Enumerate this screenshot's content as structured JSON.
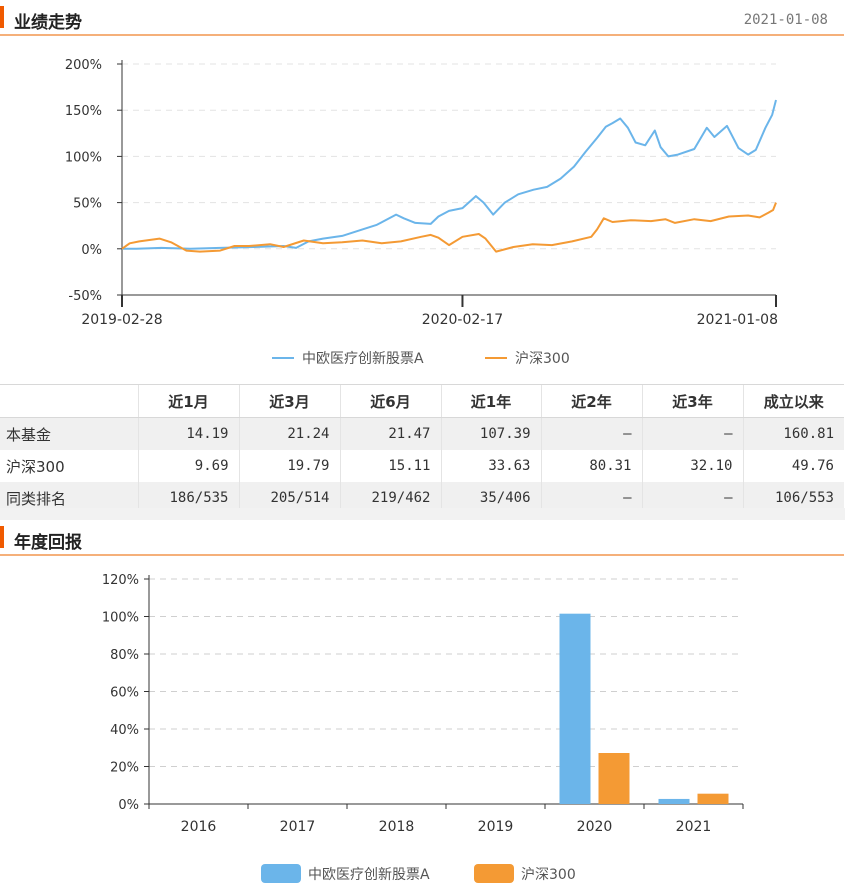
{
  "performance": {
    "title": "业绩走势",
    "date": "2021-01-08"
  },
  "chart_data": [
    {
      "type": "line",
      "ylim": [
        -50,
        200
      ],
      "yticks": [
        "200%",
        "150%",
        "100%",
        "50%",
        "0%",
        "-50%"
      ],
      "ytick_values": [
        200,
        150,
        100,
        50,
        0,
        -50
      ],
      "xticks": [
        "2019-02-28",
        "2020-02-17",
        "2021-01-08"
      ],
      "x_range": [
        "2019-02-28",
        "2021-01-08"
      ],
      "grid": true,
      "legend": "bottom",
      "series": [
        {
          "name": "中欧医疗创新股票A",
          "color": "#6bb5ea",
          "points": [
            [
              "2019-02-28",
              0
            ],
            [
              "2019-03-15",
              0
            ],
            [
              "2019-04-10",
              1
            ],
            [
              "2019-05-10",
              0
            ],
            [
              "2019-06-10",
              1
            ],
            [
              "2019-07-15",
              2
            ],
            [
              "2019-08-15",
              3
            ],
            [
              "2019-08-28",
              1
            ],
            [
              "2019-09-10",
              8
            ],
            [
              "2019-09-25",
              11
            ],
            [
              "2019-10-15",
              14
            ],
            [
              "2019-11-05",
              21
            ],
            [
              "2019-11-20",
              26
            ],
            [
              "2019-12-10",
              37
            ],
            [
              "2019-12-18",
              33
            ],
            [
              "2019-12-30",
              28
            ],
            [
              "2020-01-15",
              27
            ],
            [
              "2020-01-23",
              35
            ],
            [
              "2020-02-03",
              41
            ],
            [
              "2020-02-17",
              44
            ],
            [
              "2020-03-02",
              57
            ],
            [
              "2020-03-10",
              50
            ],
            [
              "2020-03-20",
              37
            ],
            [
              "2020-04-01",
              50
            ],
            [
              "2020-04-15",
              59
            ],
            [
              "2020-05-01",
              64
            ],
            [
              "2020-05-15",
              67
            ],
            [
              "2020-05-29",
              76
            ],
            [
              "2020-06-12",
              89
            ],
            [
              "2020-06-24",
              105
            ],
            [
              "2020-07-06",
              120
            ],
            [
              "2020-07-15",
              132
            ],
            [
              "2020-07-22",
              136
            ],
            [
              "2020-07-30",
              141
            ],
            [
              "2020-08-07",
              131
            ],
            [
              "2020-08-15",
              115
            ],
            [
              "2020-08-25",
              112
            ],
            [
              "2020-09-04",
              128
            ],
            [
              "2020-09-10",
              110
            ],
            [
              "2020-09-18",
              100
            ],
            [
              "2020-09-28",
              102
            ],
            [
              "2020-10-15",
              108
            ],
            [
              "2020-10-28",
              131
            ],
            [
              "2020-11-05",
              121
            ],
            [
              "2020-11-18",
              133
            ],
            [
              "2020-11-30",
              109
            ],
            [
              "2020-12-10",
              102
            ],
            [
              "2020-12-18",
              107
            ],
            [
              "2020-12-28",
              131
            ],
            [
              "2021-01-04",
              145
            ],
            [
              "2021-01-08",
              161
            ]
          ]
        },
        {
          "name": "沪深300",
          "color": "#f49a34",
          "points": [
            [
              "2019-02-28",
              0
            ],
            [
              "2019-03-08",
              6
            ],
            [
              "2019-03-18",
              8
            ],
            [
              "2019-04-08",
              11
            ],
            [
              "2019-04-20",
              7
            ],
            [
              "2019-05-06",
              -2
            ],
            [
              "2019-05-20",
              -3
            ],
            [
              "2019-06-10",
              -2
            ],
            [
              "2019-06-25",
              3
            ],
            [
              "2019-07-10",
              3
            ],
            [
              "2019-08-01",
              5
            ],
            [
              "2019-08-15",
              2
            ],
            [
              "2019-09-05",
              9
            ],
            [
              "2019-09-25",
              6
            ],
            [
              "2019-10-15",
              7
            ],
            [
              "2019-11-05",
              9
            ],
            [
              "2019-11-25",
              6
            ],
            [
              "2019-12-15",
              8
            ],
            [
              "2020-01-05",
              13
            ],
            [
              "2020-01-15",
              15
            ],
            [
              "2020-01-23",
              12
            ],
            [
              "2020-02-03",
              4
            ],
            [
              "2020-02-17",
              13
            ],
            [
              "2020-03-05",
              16
            ],
            [
              "2020-03-12",
              11
            ],
            [
              "2020-03-23",
              -3
            ],
            [
              "2020-04-10",
              2
            ],
            [
              "2020-04-30",
              5
            ],
            [
              "2020-05-20",
              4
            ],
            [
              "2020-06-10",
              8
            ],
            [
              "2020-06-30",
              13
            ],
            [
              "2020-07-06",
              21
            ],
            [
              "2020-07-13",
              33
            ],
            [
              "2020-07-22",
              29
            ],
            [
              "2020-08-10",
              31
            ],
            [
              "2020-08-31",
              30
            ],
            [
              "2020-09-15",
              32
            ],
            [
              "2020-09-25",
              28
            ],
            [
              "2020-10-15",
              32
            ],
            [
              "2020-11-01",
              30
            ],
            [
              "2020-11-20",
              35
            ],
            [
              "2020-12-10",
              36
            ],
            [
              "2020-12-22",
              34
            ],
            [
              "2020-12-31",
              39
            ],
            [
              "2021-01-05",
              42
            ],
            [
              "2021-01-08",
              50
            ]
          ]
        }
      ]
    },
    {
      "type": "bar",
      "title": "年度回报",
      "categories": [
        "2016",
        "2017",
        "2018",
        "2019",
        "2020",
        "2021"
      ],
      "ylim": [
        0,
        120
      ],
      "yticks": [
        "120%",
        "100%",
        "80%",
        "60%",
        "40%",
        "20%",
        "0%"
      ],
      "ytick_values": [
        120,
        100,
        80,
        60,
        40,
        20,
        0
      ],
      "grid": true,
      "legend": "bottom",
      "series": [
        {
          "name": "中欧医疗创新股票A",
          "color": "#6bb5ea",
          "values": [
            null,
            null,
            null,
            null,
            101.5,
            2.7
          ]
        },
        {
          "name": "沪深300",
          "color": "#f49a34",
          "values": [
            null,
            null,
            null,
            null,
            27.2,
            5.5
          ]
        }
      ]
    }
  ],
  "returns_table": {
    "headers": [
      "",
      "近1月",
      "近3月",
      "近6月",
      "近1年",
      "近2年",
      "近3年",
      "成立以来"
    ],
    "rows": [
      {
        "label": "本基金",
        "cells": [
          "14.19",
          "21.24",
          "21.47",
          "107.39",
          "–",
          "–",
          "160.81"
        ]
      },
      {
        "label": "沪深300",
        "cells": [
          "9.69",
          "19.79",
          "15.11",
          "33.63",
          "80.31",
          "32.10",
          "49.76"
        ]
      },
      {
        "label": "同类排名",
        "cells": [
          "186/535",
          "205/514",
          "219/462",
          "35/406",
          "–",
          "–",
          "106/553"
        ]
      }
    ]
  }
}
